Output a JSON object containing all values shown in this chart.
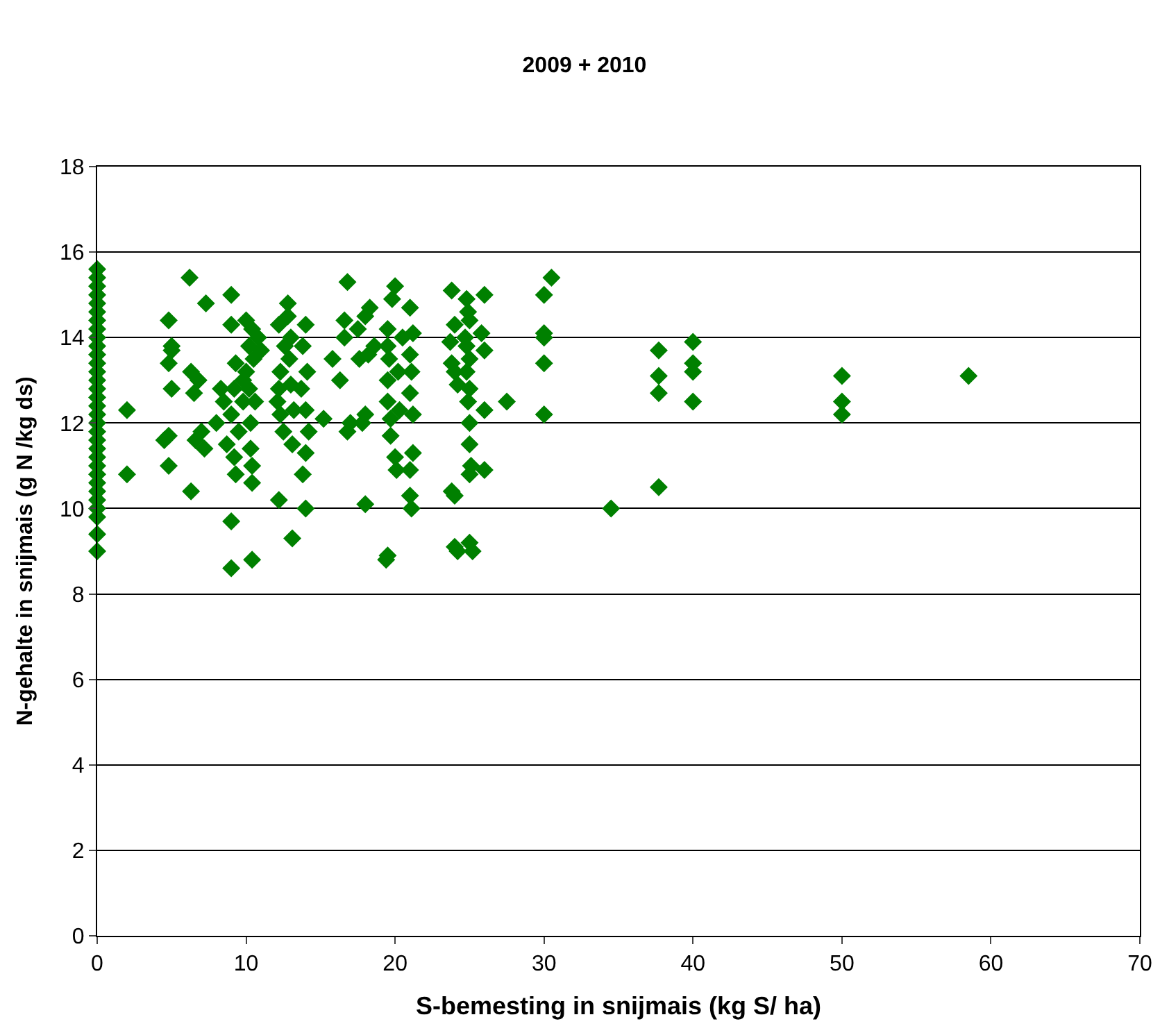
{
  "chart_data": {
    "type": "scatter",
    "title": "2009 + 2010",
    "xlabel": "S-bemesting in snijmais (kg S/ ha)",
    "ylabel": "N-gehalte in snijmais (g N /kg ds)",
    "xlim": [
      0,
      70
    ],
    "xticks": [
      0,
      10,
      20,
      30,
      40,
      50,
      60,
      70
    ],
    "ylim": [
      0,
      18
    ],
    "yticks": [
      0,
      2,
      4,
      6,
      8,
      10,
      12,
      14,
      16,
      18
    ],
    "grid": "y",
    "legend": false,
    "marker": "diamond",
    "series": [
      {
        "color": "#008000",
        "x": [
          0,
          0,
          0,
          0,
          0,
          0,
          0,
          0,
          0,
          0,
          0,
          0,
          0,
          0,
          0,
          0,
          0,
          0,
          0,
          0,
          0,
          0,
          0,
          0,
          0,
          0,
          0,
          0,
          0,
          0,
          0,
          0,
          2,
          2,
          4.5,
          4.8,
          4.8,
          5,
          4.8,
          5,
          4.8,
          5,
          6.2,
          6.3,
          6.5,
          6.3,
          6.8,
          7,
          7.2,
          7.3,
          6.6,
          8,
          8.5,
          8.3,
          8.7,
          9,
          9.2,
          9.3,
          9,
          9,
          9.2,
          9.3,
          9,
          9,
          9.8,
          9.8,
          9.5,
          10,
          10.4,
          10.2,
          10.5,
          10,
          10.2,
          10.6,
          10.3,
          10.3,
          10.4,
          10.4,
          10.4,
          11,
          10.8,
          12.2,
          12.3,
          12.2,
          12.1,
          12.3,
          12.5,
          12.2,
          12.8,
          12.8,
          13,
          12.9,
          13,
          13.2,
          13.1,
          13.1,
          12.6,
          14,
          13.8,
          14.1,
          13.7,
          14,
          14.2,
          14,
          13.8,
          14,
          15.2,
          15.8,
          16.3,
          16.6,
          16.6,
          16.8,
          17,
          16.8,
          17.6,
          17.5,
          18,
          18.3,
          18.6,
          18,
          17.8,
          18,
          18.2,
          20,
          19.8,
          19.5,
          19.5,
          19.6,
          19.5,
          19.5,
          19.7,
          19.7,
          20,
          20.1,
          19.5,
          19.4,
          20.5,
          20.2,
          20.3,
          21,
          21.2,
          21,
          21.1,
          21,
          21.2,
          21,
          21,
          21.1,
          21.2,
          23.8,
          24,
          23.7,
          23.8,
          24,
          24.2,
          23.8,
          24,
          24.2,
          24,
          24.8,
          24.9,
          25,
          24.7,
          24.8,
          25,
          24.8,
          25,
          24.9,
          25,
          25,
          25.1,
          25,
          25,
          25.2,
          25.8,
          26,
          26,
          26,
          26,
          27.5,
          30.5,
          30,
          30,
          30,
          30,
          30,
          34.5,
          37.7,
          37.7,
          37.7,
          37.7,
          40,
          40,
          40,
          40,
          50,
          50,
          50,
          58.5
        ],
        "values": [
          15.6,
          15.4,
          15.2,
          15,
          14.8,
          14.6,
          14.4,
          14.2,
          14,
          13.8,
          13.6,
          13.4,
          13.2,
          13,
          12.8,
          12.6,
          12.4,
          12.2,
          12,
          11.8,
          11.6,
          11.4,
          11.2,
          11,
          10.8,
          10.6,
          10.4,
          10.2,
          10,
          9.8,
          9.4,
          9,
          12.3,
          10.8,
          11.6,
          11.7,
          11,
          12.8,
          13.4,
          13.7,
          14.4,
          13.8,
          15.4,
          13.2,
          12.7,
          10.4,
          13,
          11.8,
          11.4,
          14.8,
          11.6,
          12,
          12.5,
          12.8,
          11.5,
          12.2,
          12.8,
          13.4,
          14.3,
          15,
          11.2,
          10.8,
          9.7,
          8.6,
          12.5,
          13,
          11.8,
          14.4,
          14.2,
          13.8,
          13.5,
          13.2,
          12.8,
          12.5,
          12,
          11.4,
          11,
          10.6,
          8.8,
          13.7,
          14,
          14.3,
          13.2,
          12.8,
          12.5,
          12.2,
          11.8,
          10.2,
          14.8,
          14.5,
          14,
          13.5,
          12.9,
          12.3,
          11.5,
          9.3,
          13.8,
          14.3,
          13.8,
          13.2,
          12.8,
          12.3,
          11.8,
          11.3,
          10.8,
          10,
          12.1,
          13.5,
          13,
          14,
          14.4,
          15.3,
          12,
          11.8,
          13.5,
          14.2,
          14.5,
          14.7,
          13.8,
          12.2,
          12,
          10.1,
          13.6,
          15.2,
          14.9,
          14.2,
          13.8,
          13.5,
          13,
          12.5,
          12.1,
          11.7,
          11.2,
          10.9,
          8.9,
          8.8,
          14,
          13.2,
          12.3,
          14.7,
          14.1,
          13.6,
          13.2,
          12.7,
          12.2,
          10.9,
          10.3,
          10,
          11.3,
          15.1,
          14.3,
          13.9,
          13.4,
          13.2,
          12.9,
          10.4,
          9.1,
          9,
          10.3,
          14.9,
          14.6,
          14.4,
          14,
          13.8,
          13.5,
          13.2,
          12.8,
          12.5,
          12,
          11.5,
          11,
          10.8,
          9.2,
          9,
          14.1,
          13.7,
          15,
          12.3,
          10.9,
          12.5,
          15.4,
          15,
          14.1,
          14,
          13.4,
          12.2,
          10,
          13.7,
          13.1,
          12.7,
          10.5,
          13.9,
          13.4,
          13.2,
          12.5,
          13.1,
          12.5,
          12.2,
          13.1
        ]
      }
    ]
  }
}
